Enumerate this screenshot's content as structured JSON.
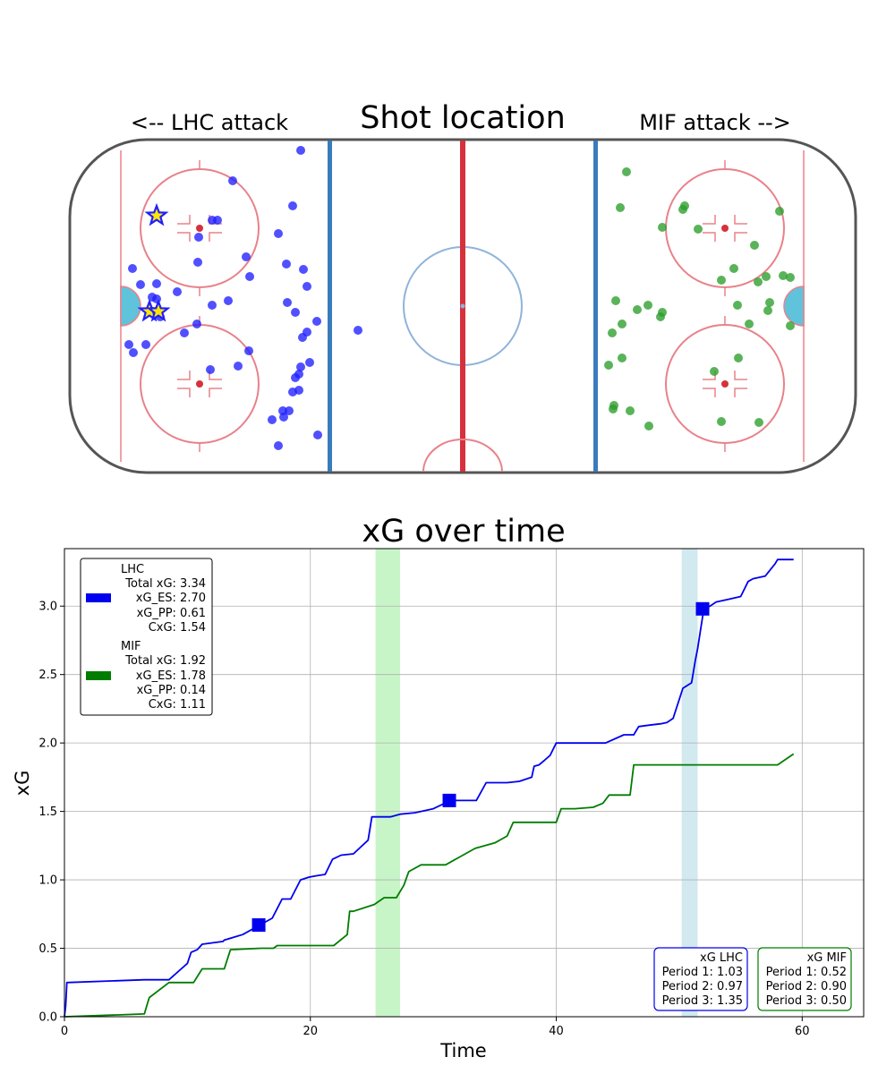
{
  "rink": {
    "title": "Shot location",
    "left_label": "<-- LHC attack",
    "right_label": "MIF attack -->",
    "colors": {
      "board": "#555555",
      "red_line": "#d6313c",
      "blue_line": "#3a7bbd",
      "crease": "#5fc3dc",
      "circle": "#e8828a",
      "center_circle": "#8fb4d9"
    }
  },
  "shots": {
    "LHC": {
      "color": "#1f1fff",
      "points": [
        [
          336,
          168
        ],
        [
          260,
          202
        ],
        [
          327,
          230
        ],
        [
          237,
          246
        ],
        [
          243,
          246
        ],
        [
          222,
          265
        ],
        [
          311,
          261
        ],
        [
          275,
          287
        ],
        [
          221,
          293
        ],
        [
          148,
          300
        ],
        [
          320,
          295
        ],
        [
          339,
          301
        ],
        [
          279,
          309
        ],
        [
          157,
          318
        ],
        [
          175,
          317
        ],
        [
          343,
          320
        ],
        [
          198,
          326
        ],
        [
          170,
          332
        ],
        [
          175,
          334
        ],
        [
          321,
          338
        ],
        [
          255,
          336
        ],
        [
          237,
          341
        ],
        [
          170,
          348
        ],
        [
          179,
          354
        ],
        [
          330,
          349
        ],
        [
          354,
          359
        ],
        [
          220,
          362
        ],
        [
          343,
          371
        ],
        [
          338,
          377
        ],
        [
          206,
          372
        ],
        [
          400,
          369
        ],
        [
          144,
          385
        ],
        [
          163,
          385
        ],
        [
          149,
          394
        ],
        [
          278,
          392
        ],
        [
          346,
          405
        ],
        [
          336,
          410
        ],
        [
          266,
          409
        ],
        [
          235,
          413
        ],
        [
          334,
          418
        ],
        [
          330,
          422
        ],
        [
          327,
          438
        ],
        [
          334,
          436
        ],
        [
          316,
          459
        ],
        [
          323,
          459
        ],
        [
          317,
          466
        ],
        [
          304,
          469
        ],
        [
          355,
          486
        ],
        [
          311,
          498
        ]
      ],
      "goals": [
        [
          175,
          241
        ],
        [
          167,
          348
        ],
        [
          177,
          348
        ]
      ]
    },
    "MIF": {
      "color": "#2a9d2a",
      "points": [
        [
          700,
          192
        ],
        [
          693,
          232
        ],
        [
          765,
          230
        ],
        [
          763,
          234
        ],
        [
          871,
          236
        ],
        [
          740,
          254
        ],
        [
          780,
          256
        ],
        [
          843,
          274
        ],
        [
          820,
          300
        ],
        [
          806,
          313
        ],
        [
          847,
          315
        ],
        [
          856,
          309
        ],
        [
          875,
          308
        ],
        [
          883,
          310
        ],
        [
          688,
          336
        ],
        [
          724,
          341
        ],
        [
          712,
          346
        ],
        [
          740,
          349
        ],
        [
          738,
          354
        ],
        [
          824,
          341
        ],
        [
          860,
          338
        ],
        [
          858,
          347
        ],
        [
          695,
          362
        ],
        [
          837,
          362
        ],
        [
          684,
          372
        ],
        [
          883,
          364
        ],
        [
          695,
          400
        ],
        [
          825,
          400
        ],
        [
          680,
          408
        ],
        [
          798,
          415
        ],
        [
          686,
          453
        ],
        [
          685,
          457
        ],
        [
          704,
          459
        ],
        [
          806,
          471
        ],
        [
          848,
          472
        ],
        [
          725,
          476
        ]
      ],
      "goals": []
    }
  },
  "chart": {
    "title": "xG over time",
    "xlabel": "Time",
    "ylabel": "xG",
    "xticks": [
      "0",
      "20",
      "40",
      "60"
    ],
    "yticks": [
      "0.0",
      "0.5",
      "1.0",
      "1.5",
      "2.0",
      "2.5",
      "3.0"
    ]
  },
  "legend": {
    "lhc": {
      "name": "LHC",
      "total": "Total xG: 3.34",
      "es": "xG_ES: 2.70",
      "pp": "xG_PP: 0.61",
      "cxg": "CxG: 1.54"
    },
    "mif": {
      "name": "MIF",
      "total": "Total xG: 1.92",
      "es": "xG_ES: 1.78",
      "pp": "xG_PP: 0.14",
      "cxg": "CxG: 1.11"
    }
  },
  "period_boxes": {
    "lhc": {
      "title": "xG LHC",
      "p1": "Period 1: 1.03",
      "p2": "Period 2: 0.97",
      "p3": "Period 3: 1.35"
    },
    "mif": {
      "title": "xG MIF",
      "p1": "Period 1: 0.52",
      "p2": "Period 2: 0.90",
      "p3": "Period 3: 0.50"
    }
  },
  "chart_data": {
    "type": "line",
    "title": "xG over time",
    "xlabel": "Time",
    "ylabel": "xG",
    "xlim": [
      0,
      65
    ],
    "ylim": [
      0,
      3.42
    ],
    "grid": true,
    "legend_position": "upper-left",
    "series": [
      {
        "name": "LHC",
        "color": "#0000ee",
        "x": [
          0,
          0.1,
          0.2,
          6.5,
          8.5,
          9.5,
          10.0,
          10.3,
          10.8,
          11.2,
          12.9,
          13.0,
          14.5,
          16.3,
          16.9,
          17.7,
          18.4,
          19.2,
          19.9,
          20.5,
          21.2,
          21.8,
          22.5,
          23.5,
          24.7,
          25.0,
          26.5,
          27.3,
          28.5,
          30.0,
          31.4,
          33.5,
          34.3,
          36.0,
          37.0,
          38.0,
          38.2,
          38.6,
          39.0,
          39.5,
          40.0,
          42.0,
          44.0,
          45.5,
          46.3,
          46.7,
          47.5,
          48.5,
          49.0,
          49.5,
          50.3,
          51.0,
          51.3,
          51.5,
          52.0,
          52.5,
          53.0,
          54.0,
          55.0,
          55.6,
          56.0,
          57.0,
          57.8,
          58.0,
          59.3
        ],
        "y": [
          0,
          0.08,
          0.25,
          0.27,
          0.27,
          0.35,
          0.39,
          0.47,
          0.49,
          0.53,
          0.55,
          0.56,
          0.6,
          0.69,
          0.72,
          0.86,
          0.86,
          1.0,
          1.02,
          1.03,
          1.04,
          1.15,
          1.18,
          1.19,
          1.29,
          1.46,
          1.46,
          1.48,
          1.49,
          1.52,
          1.58,
          1.58,
          1.71,
          1.71,
          1.72,
          1.75,
          1.83,
          1.84,
          1.87,
          1.91,
          2.0,
          2.0,
          2.0,
          2.06,
          2.06,
          2.12,
          2.13,
          2.14,
          2.15,
          2.18,
          2.4,
          2.44,
          2.6,
          2.69,
          2.98,
          3.0,
          3.03,
          3.05,
          3.07,
          3.18,
          3.2,
          3.22,
          3.31,
          3.34,
          3.34
        ]
      },
      {
        "name": "MIF",
        "color": "#007d00",
        "x": [
          0,
          6.5,
          6.7,
          6.9,
          8.5,
          10.5,
          11.2,
          13.0,
          13.5,
          16.0,
          17.0,
          17.3,
          21.9,
          23.0,
          23.2,
          23.5,
          25.2,
          26.0,
          27.0,
          27.6,
          28.0,
          29.0,
          31.0,
          32.0,
          33.4,
          35.0,
          36.0,
          36.5,
          38.0,
          40.0,
          40.4,
          41.5,
          43.0,
          43.8,
          44.3,
          46.0,
          46.3,
          48.0,
          50.0,
          53.0,
          56.0,
          58.0,
          59.3
        ],
        "y": [
          0,
          0.02,
          0.08,
          0.14,
          0.25,
          0.25,
          0.35,
          0.35,
          0.49,
          0.5,
          0.5,
          0.52,
          0.52,
          0.6,
          0.77,
          0.77,
          0.82,
          0.87,
          0.87,
          0.96,
          1.06,
          1.11,
          1.11,
          1.16,
          1.23,
          1.27,
          1.32,
          1.42,
          1.42,
          1.42,
          1.52,
          1.52,
          1.53,
          1.56,
          1.62,
          1.62,
          1.84,
          1.84,
          1.84,
          1.84,
          1.84,
          1.84,
          1.92
        ]
      }
    ],
    "goal_markers": {
      "team": "LHC",
      "x": [
        15.8,
        31.3,
        51.9
      ],
      "y": [
        0.67,
        1.58,
        2.98
      ]
    },
    "highlight_spans": [
      {
        "x0": 25.3,
        "x1": 27.3,
        "color": "#c8f5c8"
      },
      {
        "x0": 50.2,
        "x1": 51.5,
        "color": "#d3e9f0"
      }
    ]
  }
}
